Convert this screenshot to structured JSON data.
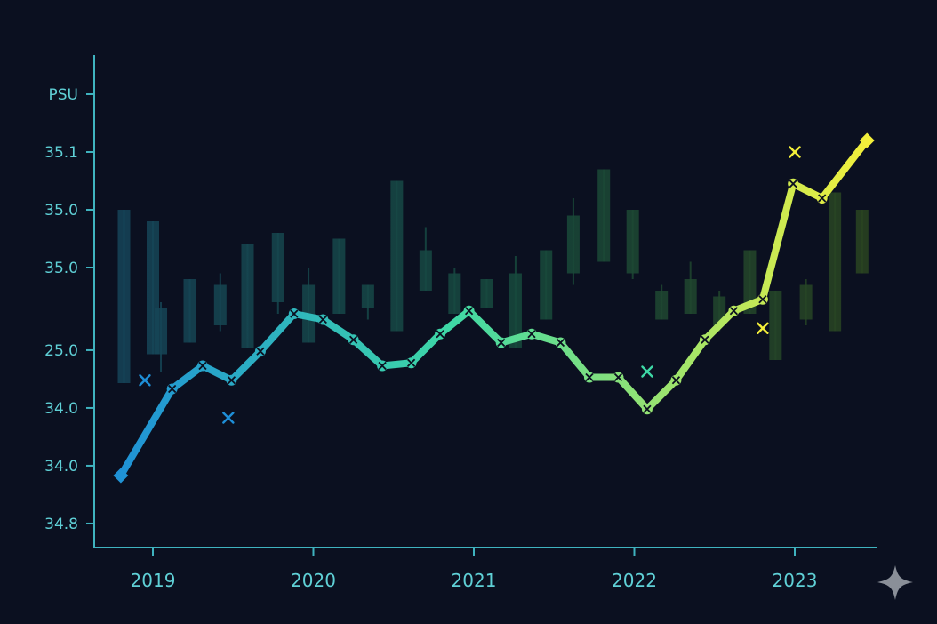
{
  "chart_data": {
    "type": "line",
    "title": "",
    "xlabel": "",
    "ylabel": "",
    "x_ticks": [
      "2019",
      "2020",
      "2021",
      "2022",
      "2023"
    ],
    "x_tick_values": [
      2019.0,
      2020.0,
      2021.0,
      2022.0,
      2023.0
    ],
    "xlim": [
      2018.62,
      2023.48
    ],
    "y_ticks": [
      "PSU",
      "35.1",
      "35.0",
      "35.0",
      "25.0",
      "34.0",
      "34.0",
      "34.8"
    ],
    "y_tick_positions": [
      8,
      7,
      6,
      5,
      3.57,
      2.57,
      1.57,
      0.57
    ],
    "ylim": [
      0.2,
      8.6
    ],
    "grid": false,
    "legend": "none",
    "colors": {
      "start": "#1e8fd8",
      "mid": "#3ed8a6",
      "end": "#f4ef3a"
    },
    "series": [
      {
        "values": [
          {
            "x": 2018.8,
            "y": 1.4
          },
          {
            "x": 2019.12,
            "y": 2.9
          },
          {
            "x": 2019.31,
            "y": 3.3
          },
          {
            "x": 2019.49,
            "y": 3.05
          },
          {
            "x": 2019.67,
            "y": 3.55
          },
          {
            "x": 2019.88,
            "y": 4.2
          },
          {
            "x": 2020.06,
            "y": 4.1
          },
          {
            "x": 2020.25,
            "y": 3.75
          },
          {
            "x": 2020.43,
            "y": 3.3
          },
          {
            "x": 2020.61,
            "y": 3.35
          },
          {
            "x": 2020.79,
            "y": 3.85
          },
          {
            "x": 2020.97,
            "y": 4.25
          },
          {
            "x": 2021.17,
            "y": 3.7
          },
          {
            "x": 2021.36,
            "y": 3.85
          },
          {
            "x": 2021.54,
            "y": 3.7
          },
          {
            "x": 2021.72,
            "y": 3.1
          },
          {
            "x": 2021.9,
            "y": 3.1
          },
          {
            "x": 2022.08,
            "y": 2.55
          },
          {
            "x": 2022.26,
            "y": 3.05
          },
          {
            "x": 2022.44,
            "y": 3.75
          },
          {
            "x": 2022.62,
            "y": 4.25
          },
          {
            "x": 2022.8,
            "y": 4.45
          },
          {
            "x": 2022.99,
            "y": 6.45
          },
          {
            "x": 2023.17,
            "y": 6.2
          },
          {
            "x": 2023.45,
            "y": 7.2
          }
        ]
      }
    ],
    "scatter_points": [
      {
        "x": 2018.95,
        "y": 3.05
      },
      {
        "x": 2019.47,
        "y": 2.4
      },
      {
        "x": 2022.08,
        "y": 3.2
      },
      {
        "x": 2022.8,
        "y": 3.95
      },
      {
        "x": 2023.0,
        "y": 7.0
      }
    ],
    "candles": [
      {
        "x": 2018.82,
        "open": 3.0,
        "close": 6.0,
        "high": 6.0,
        "low": 3.0
      },
      {
        "x": 2019.0,
        "open": 3.5,
        "close": 5.8,
        "high": 5.8,
        "low": 3.5
      },
      {
        "x": 2019.05,
        "open": 3.5,
        "close": 4.3,
        "high": 4.4,
        "low": 3.2
      },
      {
        "x": 2019.23,
        "open": 3.7,
        "close": 4.8,
        "high": 4.8,
        "low": 3.7
      },
      {
        "x": 2019.42,
        "open": 4.0,
        "close": 4.7,
        "high": 4.9,
        "low": 3.9
      },
      {
        "x": 2019.59,
        "open": 3.6,
        "close": 5.4,
        "high": 5.4,
        "low": 3.6
      },
      {
        "x": 2019.78,
        "open": 4.4,
        "close": 5.6,
        "high": 5.6,
        "low": 4.2
      },
      {
        "x": 2019.97,
        "open": 3.7,
        "close": 4.7,
        "high": 5.0,
        "low": 3.7
      },
      {
        "x": 2020.16,
        "open": 4.2,
        "close": 5.5,
        "high": 5.5,
        "low": 4.2
      },
      {
        "x": 2020.34,
        "open": 4.3,
        "close": 4.7,
        "high": 4.7,
        "low": 4.1
      },
      {
        "x": 2020.52,
        "open": 3.9,
        "close": 6.5,
        "high": 6.5,
        "low": 3.9
      },
      {
        "x": 2020.7,
        "open": 4.6,
        "close": 5.3,
        "high": 5.7,
        "low": 4.6
      },
      {
        "x": 2020.88,
        "open": 4.2,
        "close": 4.9,
        "high": 5.0,
        "low": 4.2
      },
      {
        "x": 2021.08,
        "open": 4.3,
        "close": 4.8,
        "high": 4.8,
        "low": 4.3
      },
      {
        "x": 2021.26,
        "open": 3.6,
        "close": 4.9,
        "high": 5.2,
        "low": 3.6
      },
      {
        "x": 2021.45,
        "open": 4.1,
        "close": 5.3,
        "high": 5.3,
        "low": 4.1
      },
      {
        "x": 2021.62,
        "open": 4.9,
        "close": 5.9,
        "high": 6.2,
        "low": 4.7
      },
      {
        "x": 2021.81,
        "open": 5.1,
        "close": 6.7,
        "high": 6.7,
        "low": 5.1
      },
      {
        "x": 2021.99,
        "open": 4.9,
        "close": 6.0,
        "high": 6.0,
        "low": 4.8
      },
      {
        "x": 2022.17,
        "open": 4.1,
        "close": 4.6,
        "high": 4.7,
        "low": 4.1
      },
      {
        "x": 2022.35,
        "open": 4.2,
        "close": 4.8,
        "high": 5.1,
        "low": 4.2
      },
      {
        "x": 2022.53,
        "open": 4.0,
        "close": 4.5,
        "high": 4.6,
        "low": 3.9
      },
      {
        "x": 2022.72,
        "open": 4.2,
        "close": 5.3,
        "high": 5.3,
        "low": 4.2
      },
      {
        "x": 2022.88,
        "open": 3.4,
        "close": 4.6,
        "high": 4.6,
        "low": 3.4
      },
      {
        "x": 2023.07,
        "open": 4.1,
        "close": 4.7,
        "high": 4.8,
        "low": 4.0
      },
      {
        "x": 2023.25,
        "open": 3.9,
        "close": 6.3,
        "high": 6.3,
        "low": 3.9
      },
      {
        "x": 2023.42,
        "open": 4.9,
        "close": 6.0,
        "high": 6.0,
        "low": 4.9
      }
    ]
  }
}
